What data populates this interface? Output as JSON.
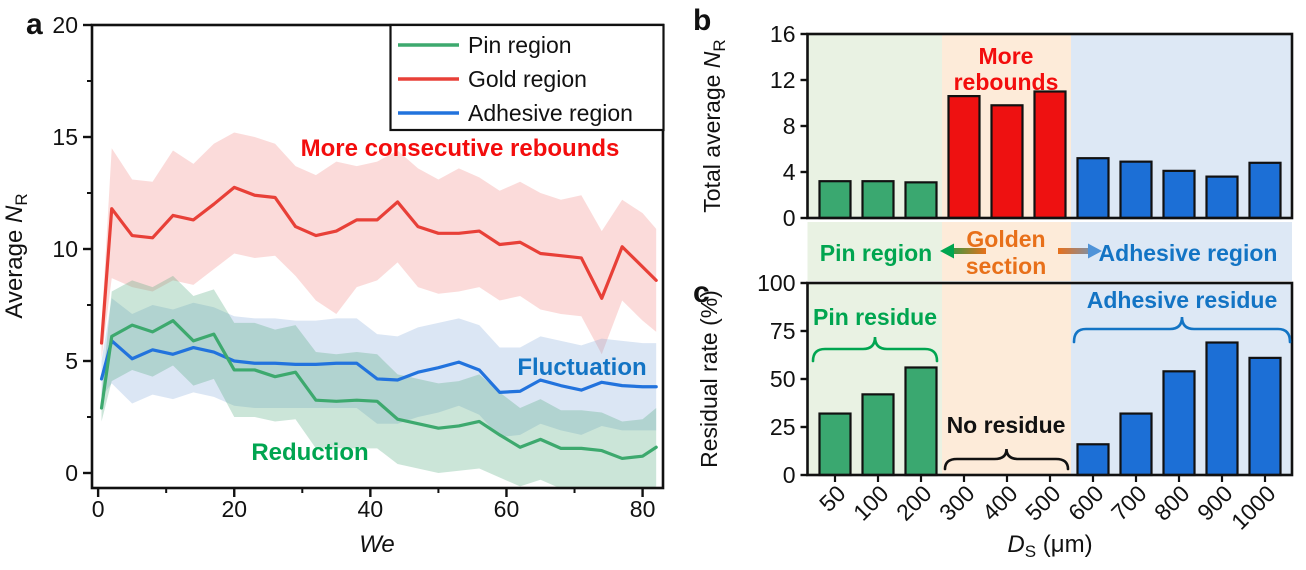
{
  "figure": {
    "panel_labels": [
      "a",
      "b",
      "c"
    ]
  },
  "colors": {
    "pin_green": "#3aa870",
    "gold_red": "#ee1111",
    "adhesive_blue": "#1c6fd6",
    "line_green": "#3da96e",
    "line_red": "#e84038",
    "line_blue": "#2273dd",
    "band_green": "rgba(70,160,115,0.28)",
    "band_red": "rgba(235,90,85,0.22)",
    "band_blue": "rgba(125,165,215,0.28)",
    "strip_green": "#e9f2e3",
    "strip_orange": "#fdebd9",
    "strip_blue": "#dde8f5",
    "text_green": "#00a550",
    "text_orange": "#e8701a",
    "text_blue": "#1374c4",
    "text_red": "#f30d0d",
    "axis_black": "#111111"
  },
  "region_labels": {
    "pin": "Pin region",
    "golden": [
      "Golden",
      "section"
    ],
    "adhesive": "Adhesive region"
  },
  "chart_data": [
    {
      "id": "a",
      "type": "line",
      "xlabel_italic": "We",
      "ylabel": {
        "prefix": "Average ",
        "italic": "N",
        "sub": "R"
      },
      "xlim": [
        -0.9,
        83
      ],
      "ylim": [
        -0.67,
        20
      ],
      "xticks": [
        0,
        20,
        40,
        60,
        80
      ],
      "xminor": [
        10,
        30,
        50,
        70
      ],
      "yticks": [
        0,
        5,
        10,
        15,
        20
      ],
      "yminor": [
        2.5,
        7.5,
        12.5,
        17.5
      ],
      "legend": [
        "Pin region",
        "Gold region",
        "Adhesive region"
      ],
      "x": [
        0.5,
        2,
        5,
        8,
        11,
        14,
        17,
        20,
        23,
        26,
        29,
        32,
        35,
        38,
        41,
        44,
        47,
        50,
        53,
        56,
        59,
        62,
        65,
        68,
        71,
        74,
        77,
        80,
        82
      ],
      "series": [
        {
          "name": "Gold region",
          "color_key": "line_red",
          "band_key": "band_red",
          "values": [
            5.8,
            11.8,
            10.6,
            10.5,
            11.5,
            11.3,
            12.0,
            12.75,
            12.4,
            12.3,
            11.0,
            10.6,
            10.8,
            11.3,
            11.3,
            12.1,
            11.0,
            10.7,
            10.7,
            10.8,
            10.2,
            10.3,
            9.8,
            9.7,
            9.6,
            7.8,
            10.1,
            9.2,
            8.6
          ],
          "hi": [
            6.6,
            14.5,
            13.1,
            13.0,
            14.4,
            13.8,
            14.7,
            15.2,
            15.0,
            14.7,
            13.7,
            13.3,
            13.9,
            13.7,
            13.9,
            14.4,
            13.6,
            13.1,
            13.6,
            13.2,
            12.6,
            13.0,
            12.5,
            12.2,
            12.4,
            10.8,
            12.2,
            11.6,
            10.9
          ],
          "lo": [
            5.1,
            8.7,
            8.3,
            8.1,
            8.6,
            8.4,
            9.1,
            9.8,
            9.6,
            9.7,
            8.8,
            7.7,
            7.1,
            8.3,
            8.6,
            9.4,
            8.3,
            8.0,
            8.1,
            8.3,
            7.7,
            7.9,
            7.3,
            7.1,
            7.0,
            5.3,
            7.7,
            6.8,
            6.3
          ]
        },
        {
          "name": "Adhesive region",
          "color_key": "line_blue",
          "band_key": "band_blue",
          "values": [
            4.2,
            5.9,
            5.1,
            5.5,
            5.3,
            5.6,
            5.4,
            5.0,
            4.9,
            4.9,
            4.85,
            4.85,
            4.9,
            4.9,
            4.2,
            4.15,
            4.5,
            4.7,
            4.95,
            4.6,
            3.6,
            3.65,
            4.15,
            3.9,
            3.7,
            4.05,
            3.9,
            3.85,
            3.85
          ],
          "hi": [
            5.0,
            7.8,
            7.1,
            7.5,
            7.3,
            7.6,
            7.4,
            7.0,
            6.9,
            6.9,
            6.8,
            6.8,
            6.9,
            6.9,
            6.2,
            6.1,
            6.5,
            6.7,
            6.9,
            6.6,
            5.6,
            5.6,
            6.1,
            5.9,
            5.7,
            6.0,
            5.9,
            5.8,
            5.8
          ],
          "lo": [
            3.4,
            4.0,
            3.1,
            3.5,
            3.3,
            3.6,
            3.4,
            3.0,
            2.9,
            2.9,
            2.9,
            2.9,
            2.9,
            2.9,
            2.2,
            2.2,
            2.5,
            2.7,
            3.0,
            2.6,
            1.6,
            1.7,
            2.2,
            1.9,
            1.7,
            2.1,
            1.9,
            1.9,
            1.9
          ]
        },
        {
          "name": "Pin region",
          "color_key": "line_green",
          "band_key": "band_green",
          "values": [
            2.9,
            6.1,
            6.6,
            6.3,
            6.8,
            5.9,
            6.2,
            4.6,
            4.6,
            4.3,
            4.5,
            3.25,
            3.2,
            3.25,
            3.2,
            2.4,
            2.2,
            2.0,
            2.1,
            2.3,
            1.7,
            1.15,
            1.5,
            1.1,
            1.1,
            1.0,
            0.65,
            0.75,
            1.15
          ],
          "hi": [
            3.5,
            8.1,
            8.6,
            8.3,
            8.8,
            7.9,
            8.2,
            6.7,
            6.7,
            6.4,
            6.6,
            5.4,
            5.3,
            5.4,
            5.3,
            4.4,
            4.2,
            4.0,
            4.1,
            4.4,
            3.6,
            2.9,
            3.3,
            2.8,
            2.8,
            2.7,
            2.3,
            2.4,
            2.9
          ],
          "lo": [
            2.3,
            4.1,
            4.6,
            4.3,
            4.8,
            3.9,
            4.2,
            2.5,
            2.5,
            2.3,
            2.4,
            1.1,
            1.1,
            1.1,
            1.1,
            0.4,
            0.2,
            0.0,
            0.1,
            0.2,
            -0.2,
            -0.6,
            -0.3,
            -0.7,
            -0.7,
            -0.8,
            -1.0,
            -0.9,
            -0.6
          ]
        }
      ],
      "annotations": [
        {
          "id": "more-consecutive-rebounds",
          "text": "More consecutive rebounds",
          "color_key": "text_red"
        },
        {
          "id": "reduction",
          "text": "Reduction",
          "color_key": "text_green"
        },
        {
          "id": "fluctuation",
          "text": "Fluctuation",
          "color_key": "text_blue"
        }
      ]
    },
    {
      "id": "b",
      "type": "bar",
      "ylabel": {
        "prefix": "Total average ",
        "italic": "N",
        "sub": "R"
      },
      "ylim": [
        0,
        16
      ],
      "yticks": [
        0,
        4,
        8,
        12,
        16
      ],
      "categories": [
        "50",
        "100",
        "200",
        "300",
        "400",
        "500",
        "600",
        "700",
        "800",
        "900",
        "1000"
      ],
      "values": [
        3.2,
        3.2,
        3.1,
        10.6,
        9.8,
        11.0,
        5.2,
        4.9,
        4.1,
        3.6,
        4.8
      ],
      "groups": [
        "pin",
        "pin",
        "pin",
        "gold",
        "gold",
        "gold",
        "adhesive",
        "adhesive",
        "adhesive",
        "adhesive",
        "adhesive"
      ],
      "annotation": {
        "lines": [
          "More",
          "rebounds"
        ],
        "color_key": "text_red"
      }
    },
    {
      "id": "c",
      "type": "bar",
      "xlabel": {
        "italic": "D",
        "sub": "S",
        "suffix": " (μm)"
      },
      "ylabel": "Residual rate (%)",
      "ylim": [
        0,
        100
      ],
      "yticks": [
        0,
        25,
        50,
        75,
        100
      ],
      "categories": [
        "50",
        "100",
        "200",
        "300",
        "400",
        "500",
        "600",
        "700",
        "800",
        "900",
        "1000"
      ],
      "values": [
        32,
        42,
        56,
        0,
        0,
        0,
        16,
        32,
        54,
        69,
        61
      ],
      "groups": [
        "pin",
        "pin",
        "pin",
        "gold",
        "gold",
        "gold",
        "adhesive",
        "adhesive",
        "adhesive",
        "adhesive",
        "adhesive"
      ],
      "annotations": [
        {
          "id": "pin-residue",
          "text": "Pin residue",
          "color_key": "text_green"
        },
        {
          "id": "no-residue",
          "text": "No residue",
          "color_key": "axis_black"
        },
        {
          "id": "adhesive-residue",
          "text": "Adhesive residue",
          "color_key": "text_blue"
        }
      ]
    }
  ]
}
